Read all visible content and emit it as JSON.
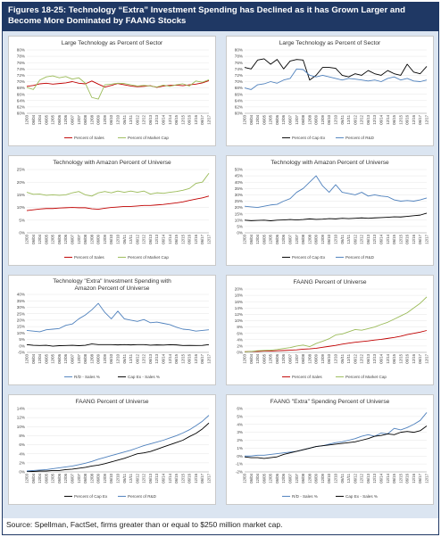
{
  "header": {
    "title": "Figures 18-25: Technology “Extra” Investment Spending has Declined as it has Grown Larger and Become More Dominated by FAANG Stocks"
  },
  "footer": {
    "source": "Source: Spellman, FactSet, firms greater than or equal to $250 million market cap."
  },
  "x_labels": [
    "12/03",
    "06/04",
    "12/04",
    "06/05",
    "12/05",
    "06/06",
    "12/06",
    "06/07",
    "12/07",
    "06/08",
    "12/08",
    "06/09",
    "12/09",
    "06/10",
    "12/10",
    "06/11",
    "12/11",
    "06/12",
    "12/12",
    "06/13",
    "12/13",
    "06/14",
    "12/14",
    "06/15",
    "12/15",
    "06/16",
    "12/16",
    "06/17",
    "12/17"
  ],
  "chart_data": [
    {
      "type": "line",
      "title": "Large Technology as Percent of Sector",
      "y_ticks": [
        "60%",
        "62%",
        "64%",
        "66%",
        "68%",
        "70%",
        "72%",
        "74%",
        "76%",
        "78%",
        "80%"
      ],
      "ylim": [
        60,
        80
      ],
      "series": [
        {
          "name": "Percent of Sales",
          "color": "#c00000",
          "values": [
            68.5,
            68.8,
            69.3,
            69.5,
            69.2,
            69.4,
            69.6,
            70.0,
            69.5,
            69.3,
            70.2,
            69.2,
            68.3,
            68.8,
            69.4,
            69.0,
            68.6,
            68.4,
            68.5,
            68.7,
            68.2,
            68.6,
            68.8,
            68.9,
            68.7,
            69.0,
            69.2,
            69.6,
            70.3
          ]
        },
        {
          "name": "Percent of Market Cap",
          "color": "#9bbb59",
          "values": [
            68.2,
            67.5,
            70.5,
            71.5,
            71.8,
            71.2,
            71.6,
            70.8,
            71.2,
            69.5,
            65.0,
            64.5,
            69.0,
            69.2,
            69.5,
            69.4,
            69.0,
            68.6,
            68.8,
            68.6,
            68.3,
            68.9,
            68.5,
            69.0,
            69.3,
            68.6,
            70.2,
            69.8,
            70.6
          ]
        }
      ]
    },
    {
      "type": "line",
      "title": "Large Technology as Percent of Sector",
      "y_ticks": [
        "60%",
        "62%",
        "64%",
        "66%",
        "68%",
        "70%",
        "72%",
        "74%",
        "76%",
        "78%",
        "80%"
      ],
      "ylim": [
        60,
        80
      ],
      "series": [
        {
          "name": "Percent of Cap Ex",
          "color": "#000000",
          "values": [
            74.5,
            74.0,
            76.8,
            77.2,
            75.5,
            77.0,
            74.0,
            76.5,
            77.0,
            76.8,
            70.5,
            72.0,
            74.5,
            74.5,
            74.2,
            72.0,
            71.5,
            72.5,
            72.0,
            73.5,
            72.5,
            72.0,
            73.5,
            72.5,
            72.0,
            75.5,
            73.0,
            72.5,
            74.8
          ]
        },
        {
          "name": "Percent of R&D",
          "color": "#4f81bd",
          "values": [
            68.0,
            67.5,
            69.0,
            69.3,
            70.0,
            69.5,
            70.5,
            71.0,
            74.0,
            73.8,
            72.0,
            71.5,
            72.0,
            71.5,
            71.0,
            70.5,
            71.0,
            70.8,
            70.5,
            70.2,
            70.5,
            70.0,
            71.0,
            71.5,
            70.5,
            71.0,
            70.2,
            70.0,
            70.5
          ]
        }
      ]
    },
    {
      "type": "line",
      "title": "Technology with Amazon Percent of Universe",
      "y_ticks": [
        "0%",
        "5%",
        "10%",
        "15%",
        "20%",
        "25%"
      ],
      "ylim": [
        0,
        25
      ],
      "series": [
        {
          "name": "Percent of Sales",
          "color": "#c00000",
          "values": [
            8.8,
            9.1,
            9.4,
            9.6,
            9.6,
            9.8,
            9.9,
            10.0,
            9.9,
            9.9,
            9.5,
            9.3,
            9.7,
            10.0,
            10.2,
            10.4,
            10.4,
            10.6,
            10.8,
            10.8,
            11.0,
            11.2,
            11.5,
            11.8,
            12.2,
            12.8,
            13.3,
            13.8,
            14.5
          ]
        },
        {
          "name": "Percent of Market Cap",
          "color": "#9bbb59",
          "values": [
            16.0,
            15.2,
            15.3,
            14.8,
            15.0,
            14.8,
            15.0,
            15.8,
            16.3,
            15.0,
            14.5,
            15.8,
            16.3,
            15.8,
            16.5,
            16.0,
            16.5,
            16.0,
            16.5,
            15.3,
            15.8,
            15.6,
            16.0,
            16.3,
            16.8,
            17.5,
            19.5,
            20.0,
            23.5
          ]
        }
      ]
    },
    {
      "type": "line",
      "title": "Technology with Amazon Percent of Universe",
      "y_ticks": [
        "0%",
        "5%",
        "10%",
        "15%",
        "20%",
        "25%",
        "30%",
        "35%",
        "40%",
        "45%",
        "50%"
      ],
      "ylim": [
        0,
        50
      ],
      "series": [
        {
          "name": "Percent of Cap Ex",
          "color": "#000000",
          "values": [
            10.0,
            9.6,
            9.8,
            10.0,
            9.5,
            10.0,
            10.2,
            10.5,
            10.2,
            10.5,
            11.0,
            10.6,
            10.8,
            11.2,
            11.0,
            11.5,
            11.2,
            11.5,
            11.8,
            11.5,
            11.8,
            12.0,
            12.3,
            12.6,
            12.5,
            13.0,
            13.5,
            14.0,
            15.5
          ]
        },
        {
          "name": "Percent of R&D",
          "color": "#4f81bd",
          "values": [
            21.0,
            20.5,
            20.0,
            21.0,
            22.0,
            22.5,
            25.0,
            27.0,
            32.0,
            35.0,
            40.0,
            45.0,
            37.0,
            32.0,
            38.0,
            32.0,
            31.0,
            30.0,
            32.0,
            29.0,
            30.0,
            29.0,
            28.5,
            26.0,
            25.0,
            25.5,
            25.0,
            26.0,
            27.5
          ]
        }
      ]
    },
    {
      "type": "line",
      "title": "Technology \"Extra\" Investment Spending with Amazon Percent of Universe",
      "y_ticks": [
        "-5%",
        "0%",
        "5%",
        "10%",
        "15%",
        "20%",
        "25%",
        "30%",
        "35%",
        "40%"
      ],
      "ylim": [
        -5,
        40
      ],
      "series": [
        {
          "name": "R/D - Sales %",
          "color": "#4f81bd",
          "values": [
            12.0,
            11.5,
            11.0,
            12.5,
            13.0,
            13.5,
            16.0,
            17.0,
            21.0,
            24.0,
            28.0,
            33.0,
            26.0,
            21.0,
            27.0,
            21.0,
            20.0,
            19.0,
            20.5,
            18.0,
            18.5,
            17.5,
            16.5,
            14.5,
            13.0,
            12.5,
            11.5,
            12.0,
            12.5
          ]
        },
        {
          "name": "Cap Ex - Sales %",
          "color": "#000000",
          "values": [
            1.0,
            0.5,
            0.3,
            0.5,
            -0.2,
            0.2,
            0.3,
            0.5,
            0.2,
            0.5,
            1.5,
            1.0,
            1.0,
            1.0,
            0.8,
            1.0,
            0.8,
            1.0,
            1.0,
            0.6,
            0.8,
            0.7,
            0.9,
            0.8,
            0.3,
            0.4,
            0.3,
            0.4,
            1.0
          ]
        }
      ]
    },
    {
      "type": "line",
      "title": "FAANG Percent of Universe",
      "y_ticks": [
        "0%",
        "2%",
        "4%",
        "6%",
        "8%",
        "10%",
        "12%",
        "14%",
        "16%",
        "18%",
        "20%"
      ],
      "ylim": [
        0,
        20
      ],
      "series": [
        {
          "name": "Percent of Sales",
          "color": "#c00000",
          "values": [
            0.2,
            0.3,
            0.3,
            0.4,
            0.4,
            0.5,
            0.6,
            0.7,
            0.8,
            1.0,
            1.1,
            1.3,
            1.6,
            1.9,
            2.2,
            2.6,
            2.9,
            3.2,
            3.4,
            3.6,
            3.9,
            4.1,
            4.4,
            4.7,
            5.1,
            5.6,
            6.0,
            6.4,
            6.9
          ]
        },
        {
          "name": "Percent of Market Cap",
          "color": "#9bbb59",
          "values": [
            0.2,
            0.3,
            0.5,
            0.6,
            0.7,
            0.9,
            1.2,
            1.5,
            2.0,
            2.3,
            1.8,
            2.8,
            3.5,
            4.3,
            5.5,
            5.8,
            6.5,
            7.2,
            7.0,
            7.5,
            8.0,
            8.8,
            9.5,
            10.5,
            11.5,
            12.5,
            14.0,
            15.5,
            17.5
          ]
        }
      ]
    },
    {
      "type": "line",
      "title": "FAANG Percent of Universe",
      "y_ticks": [
        "0%",
        "2%",
        "4%",
        "6%",
        "8%",
        "10%",
        "12%",
        "14%"
      ],
      "ylim": [
        0,
        14
      ],
      "series": [
        {
          "name": "Percent of Cap Ex",
          "color": "#000000",
          "values": [
            0.1,
            0.1,
            0.2,
            0.2,
            0.3,
            0.3,
            0.5,
            0.6,
            0.8,
            1.0,
            1.3,
            1.5,
            1.8,
            2.2,
            2.6,
            3.0,
            3.5,
            4.0,
            4.2,
            4.5,
            5.0,
            5.5,
            6.0,
            6.5,
            7.0,
            7.8,
            8.5,
            9.5,
            10.8
          ]
        },
        {
          "name": "Percent of R&D",
          "color": "#4f81bd",
          "values": [
            0.2,
            0.3,
            0.4,
            0.5,
            0.7,
            0.9,
            1.1,
            1.3,
            1.6,
            1.9,
            2.3,
            2.8,
            3.2,
            3.6,
            4.0,
            4.4,
            4.8,
            5.3,
            5.8,
            6.2,
            6.6,
            7.0,
            7.5,
            8.0,
            8.6,
            9.3,
            10.2,
            11.2,
            12.5
          ]
        }
      ]
    },
    {
      "type": "line",
      "title": "FAANG \"Extra\" Spending Percent of Universe",
      "y_ticks": [
        "-2%",
        "-1%",
        "0%",
        "1%",
        "2%",
        "3%",
        "4%",
        "5%",
        "6%"
      ],
      "ylim": [
        -2,
        6
      ],
      "series": [
        {
          "name": "R/D - Sales %",
          "color": "#4f81bd",
          "values": [
            0.0,
            0.0,
            0.1,
            0.1,
            0.2,
            0.3,
            0.4,
            0.5,
            0.6,
            0.8,
            1.0,
            1.2,
            1.3,
            1.5,
            1.7,
            1.8,
            2.0,
            2.2,
            2.5,
            2.7,
            2.5,
            2.9,
            2.8,
            3.5,
            3.3,
            3.6,
            4.0,
            4.5,
            5.5
          ]
        },
        {
          "name": "Cap Ex - Sales %",
          "color": "#000000",
          "values": [
            -0.1,
            -0.2,
            -0.2,
            -0.3,
            -0.2,
            -0.1,
            0.2,
            0.4,
            0.6,
            0.8,
            1.0,
            1.2,
            1.3,
            1.4,
            1.5,
            1.6,
            1.7,
            1.8,
            2.0,
            2.2,
            2.5,
            2.6,
            2.8,
            2.7,
            3.0,
            3.1,
            3.0,
            3.2,
            3.8
          ]
        }
      ]
    }
  ]
}
